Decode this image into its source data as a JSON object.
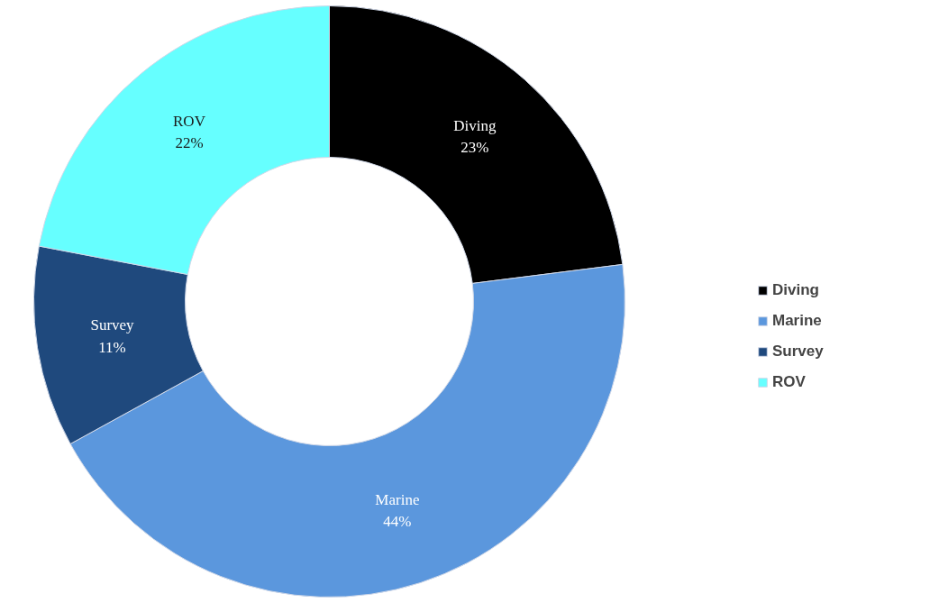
{
  "chart_data": {
    "type": "donut",
    "categories": [
      "Diving",
      "Marine",
      "Survey",
      "ROV"
    ],
    "values": [
      23,
      44,
      11,
      22
    ],
    "colors": [
      "#000000",
      "#5b97dd",
      "#1f497d",
      "#66ffff"
    ],
    "value_labels": [
      "23%",
      "44%",
      "11%",
      "22%"
    ],
    "data_labels": true,
    "legend": "right"
  }
}
